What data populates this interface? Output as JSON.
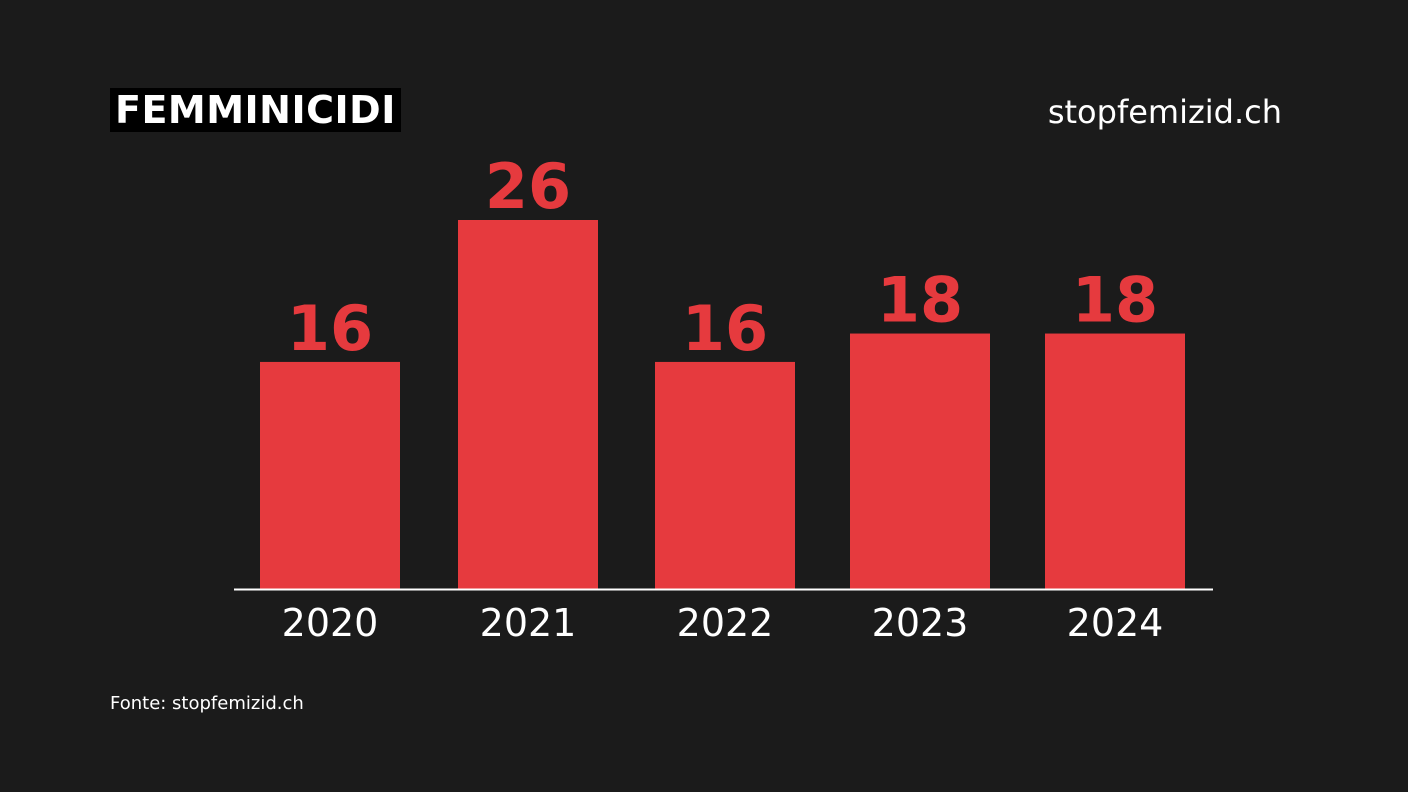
{
  "header": {
    "title": "FEMMINICIDI",
    "brand": "stopfemizid.ch"
  },
  "footer": {
    "source": "Fonte: stopfemizid.ch"
  },
  "colors": {
    "background": "#1b1b1b",
    "bar": "#e63a3e",
    "value_label": "#e63a3e",
    "axis": "#ffffff",
    "tick_label": "#ffffff"
  },
  "chart_data": {
    "type": "bar",
    "title": "FEMMINICIDI",
    "categories": [
      "2020",
      "2021",
      "2022",
      "2023",
      "2024"
    ],
    "values": [
      16,
      26,
      16,
      18,
      18
    ],
    "xlabel": "",
    "ylabel": "",
    "ylim": [
      0,
      26
    ],
    "grid": false,
    "legend": "none",
    "data_labels": true
  }
}
